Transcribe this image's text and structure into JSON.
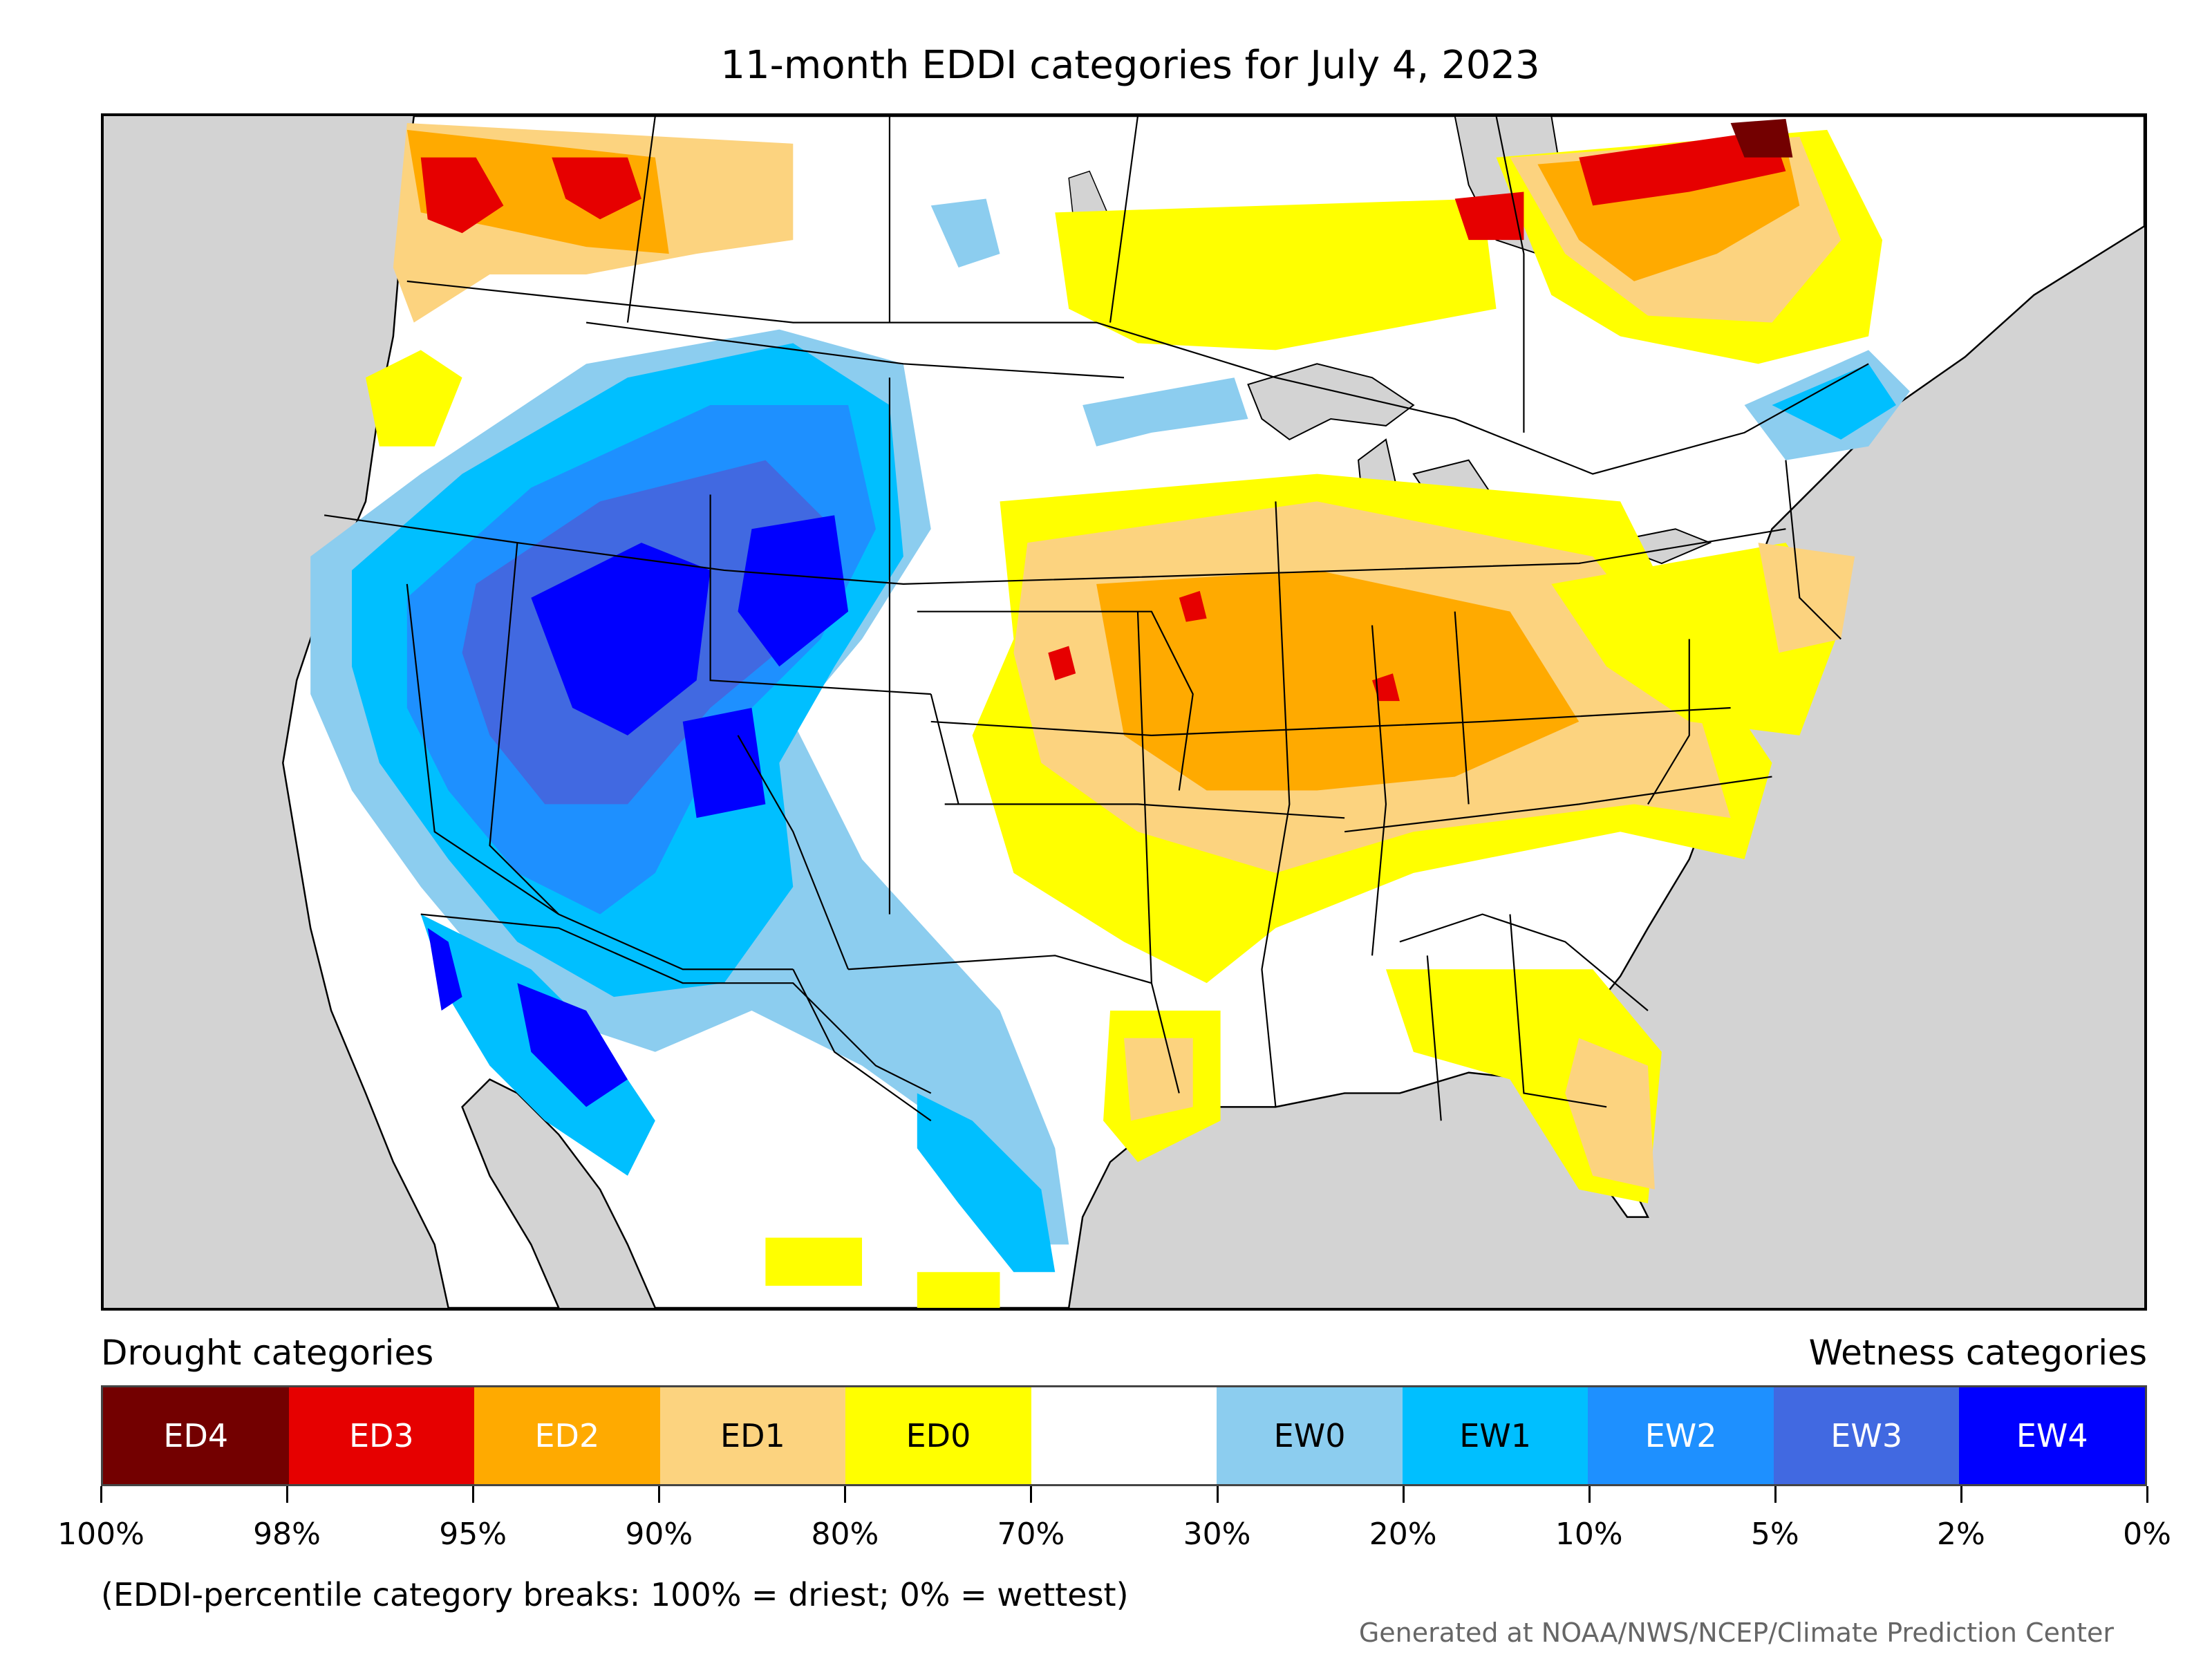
{
  "title": "11-month EDDI categories for July 4, 2023",
  "legend": {
    "drought_heading": "Drought categories",
    "wetness_heading": "Wetness categories",
    "categories": [
      {
        "label": "ED4",
        "color": "#730000",
        "text_color": "#ffffff"
      },
      {
        "label": "ED3",
        "color": "#e60000",
        "text_color": "#ffffff"
      },
      {
        "label": "ED2",
        "color": "#ffaa00",
        "text_color": "#ffffff"
      },
      {
        "label": "ED1",
        "color": "#fcd37f",
        "text_color": "#000000"
      },
      {
        "label": "ED0",
        "color": "#ffff00",
        "text_color": "#000000"
      },
      {
        "label": "",
        "color": "#ffffff",
        "text_color": "#000000"
      },
      {
        "label": "EW0",
        "color": "#8ccdef",
        "text_color": "#000000"
      },
      {
        "label": "EW1",
        "color": "#00bfff",
        "text_color": "#000000"
      },
      {
        "label": "EW2",
        "color": "#1e90ff",
        "text_color": "#ffffff"
      },
      {
        "label": "EW3",
        "color": "#4169e1",
        "text_color": "#ffffff"
      },
      {
        "label": "EW4",
        "color": "#0000ff",
        "text_color": "#ffffff"
      }
    ],
    "tick_labels": [
      "100%",
      "98%",
      "95%",
      "90%",
      "80%",
      "70%",
      "30%",
      "20%",
      "10%",
      "5%",
      "2%",
      "0%"
    ]
  },
  "note": "(EDDI-percentile category breaks: 100% = driest; 0% = wettest)",
  "credit": "Generated at NOAA/NWS/NCEP/Climate Prediction Center",
  "map": {
    "ocean_color": "#d3d3d3",
    "land_color": "#ffffff"
  }
}
